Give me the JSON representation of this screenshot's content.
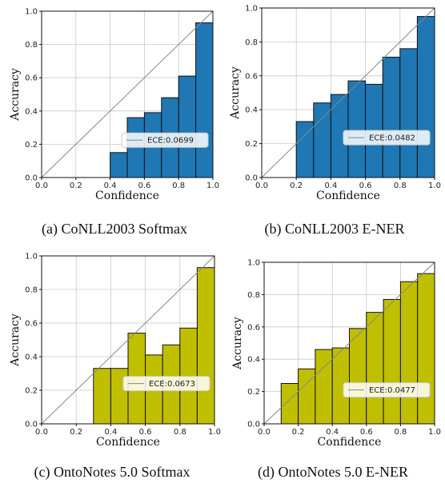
{
  "figure": {
    "captions": [
      "(a) CoNLL2003 Softmax",
      "(b) CoNLL2003 E-NER",
      "(c) OntoNotes 5.0 Softmax",
      "(d) OntoNotes 5.0 E-NER"
    ]
  },
  "chart_data": [
    {
      "type": "bar",
      "caption": "(a) CoNLL2003 Softmax",
      "xlabel": "Confidence",
      "ylabel": "Accuracy",
      "xlim": [
        0,
        1
      ],
      "ylim": [
        0,
        1
      ],
      "xticks": [
        "0.0",
        "0.2",
        "0.4",
        "0.6",
        "0.8",
        "1.0"
      ],
      "yticks": [
        "0.0",
        "0.2",
        "0.4",
        "0.6",
        "0.8",
        "1.0"
      ],
      "bin_width": 0.1,
      "bins": [
        {
          "x0": 0.4,
          "value": 0.15
        },
        {
          "x0": 0.5,
          "value": 0.36
        },
        {
          "x0": 0.6,
          "value": 0.39
        },
        {
          "x0": 0.7,
          "value": 0.48
        },
        {
          "x0": 0.8,
          "value": 0.61
        },
        {
          "x0": 0.9,
          "value": 0.93
        }
      ],
      "legend": "ECE:0.0699",
      "legend_position": "lower right",
      "bar_color": "#1f77b4",
      "diagonal": true,
      "grid": true
    },
    {
      "type": "bar",
      "caption": "(b) CoNLL2003 E-NER",
      "xlabel": "Confidence",
      "ylabel": "Accuracy",
      "xlim": [
        0,
        1
      ],
      "ylim": [
        0,
        1
      ],
      "xticks": [
        "0.0",
        "0.2",
        "0.4",
        "0.6",
        "0.8",
        "1.0"
      ],
      "yticks": [
        "0.0",
        "0.2",
        "0.4",
        "0.6",
        "0.8",
        "1.0"
      ],
      "bin_width": 0.1,
      "bins": [
        {
          "x0": 0.2,
          "value": 0.33
        },
        {
          "x0": 0.3,
          "value": 0.44
        },
        {
          "x0": 0.4,
          "value": 0.49
        },
        {
          "x0": 0.5,
          "value": 0.57
        },
        {
          "x0": 0.6,
          "value": 0.55
        },
        {
          "x0": 0.7,
          "value": 0.71
        },
        {
          "x0": 0.8,
          "value": 0.76
        },
        {
          "x0": 0.9,
          "value": 0.95
        }
      ],
      "legend": "ECE:0.0482",
      "legend_position": "center right",
      "bar_color": "#1f77b4",
      "diagonal": true,
      "grid": true
    },
    {
      "type": "bar",
      "caption": "(c) OntoNotes 5.0 Softmax",
      "xlabel": "Confidence",
      "ylabel": "Accuracy",
      "xlim": [
        0,
        1
      ],
      "ylim": [
        0,
        1
      ],
      "xticks": [
        "0.0",
        "0.2",
        "0.4",
        "0.6",
        "0.8",
        "1.0"
      ],
      "yticks": [
        "0.0",
        "0.2",
        "0.4",
        "0.6",
        "0.8",
        "1.0"
      ],
      "bin_width": 0.1,
      "bins": [
        {
          "x0": 0.3,
          "value": 0.33
        },
        {
          "x0": 0.4,
          "value": 0.33
        },
        {
          "x0": 0.5,
          "value": 0.54
        },
        {
          "x0": 0.6,
          "value": 0.41
        },
        {
          "x0": 0.7,
          "value": 0.47
        },
        {
          "x0": 0.8,
          "value": 0.57
        },
        {
          "x0": 0.9,
          "value": 0.93
        }
      ],
      "legend": "ECE:0.0673",
      "legend_position": "center right",
      "bar_color": "#bfbf00",
      "diagonal": true,
      "grid": true
    },
    {
      "type": "bar",
      "caption": "(d) OntoNotes 5.0 E-NER",
      "xlabel": "Confidence",
      "ylabel": "Accuracy",
      "xlim": [
        0,
        1
      ],
      "ylim": [
        0,
        1
      ],
      "xticks": [
        "0.0",
        "0.2",
        "0.4",
        "0.6",
        "0.8",
        "1.0"
      ],
      "yticks": [
        "0.0",
        "0.2",
        "0.4",
        "0.6",
        "0.8",
        "1.0"
      ],
      "bin_width": 0.1,
      "bins": [
        {
          "x0": 0.1,
          "value": 0.25
        },
        {
          "x0": 0.2,
          "value": 0.34
        },
        {
          "x0": 0.3,
          "value": 0.46
        },
        {
          "x0": 0.4,
          "value": 0.47
        },
        {
          "x0": 0.5,
          "value": 0.59
        },
        {
          "x0": 0.6,
          "value": 0.69
        },
        {
          "x0": 0.7,
          "value": 0.77
        },
        {
          "x0": 0.8,
          "value": 0.88
        },
        {
          "x0": 0.9,
          "value": 0.93
        }
      ],
      "legend": "ECE:0.0477",
      "legend_position": "center right",
      "bar_color": "#bfbf00",
      "diagonal": true,
      "grid": true
    }
  ]
}
